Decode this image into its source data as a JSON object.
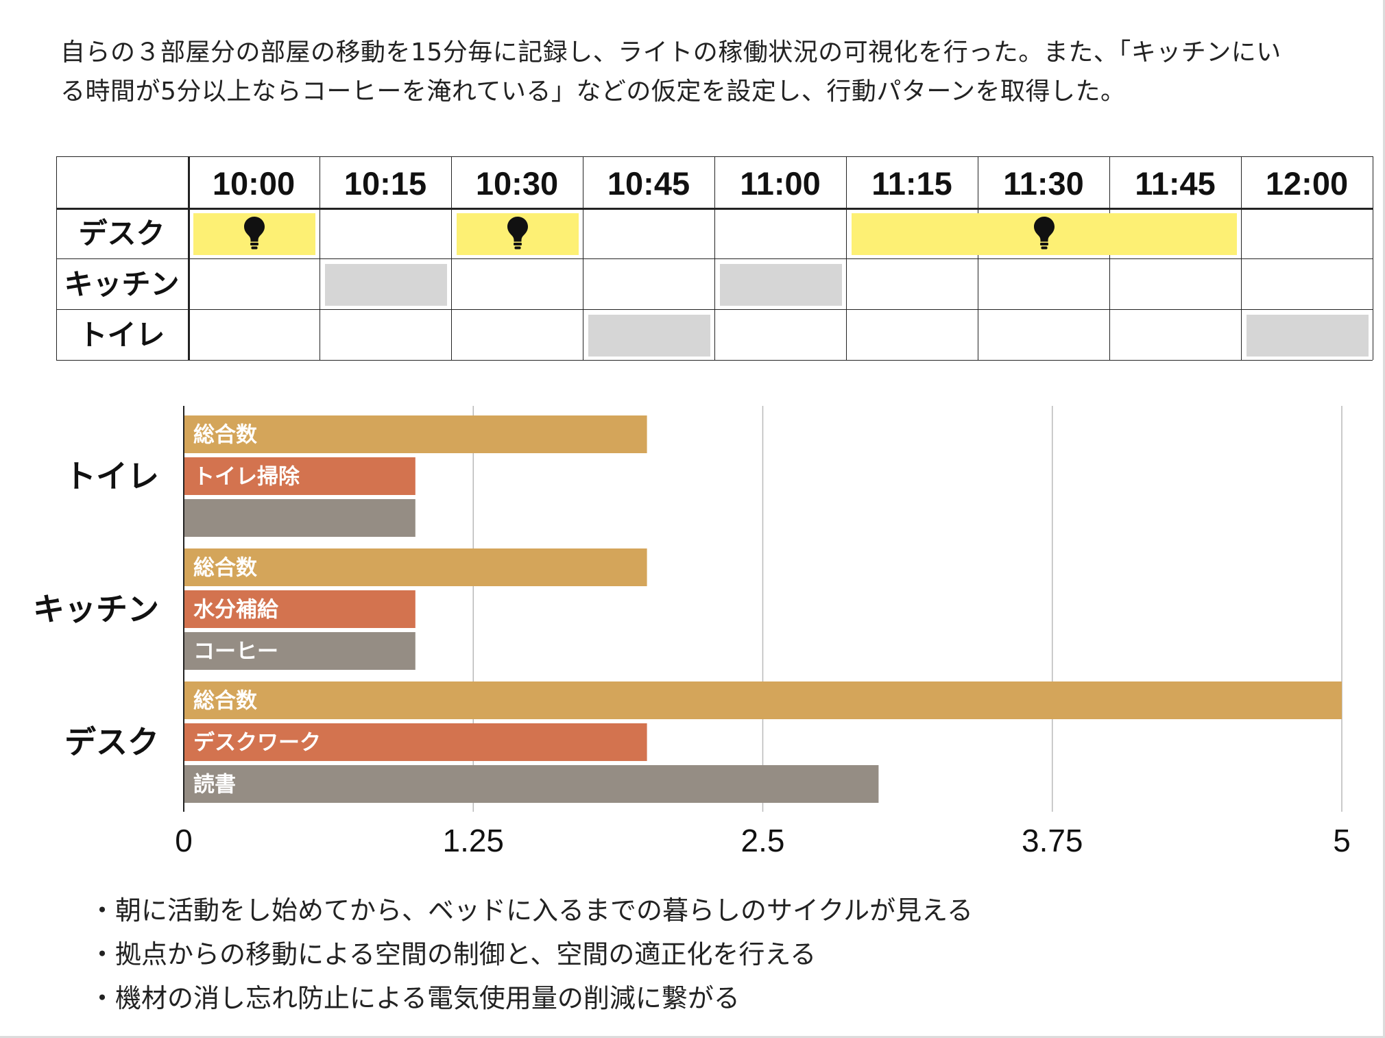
{
  "intro": {
    "line1": "自らの３部屋分の部屋の移動を15分毎に記録し、ライトの稼働状況の可視化を行った。また、「キッチンにい",
    "line2": "る時間が5分以上ならコーヒーを淹れている」などの仮定を設定し、行動パターンを取得した。"
  },
  "schedule": {
    "times": [
      "10:00",
      "10:15",
      "10:30",
      "10:45",
      "11:00",
      "11:15",
      "11:30",
      "11:45",
      "12:00"
    ],
    "rooms": [
      {
        "name": "デスク",
        "spans": [
          {
            "start": 0,
            "end": 0,
            "type": "light"
          },
          {
            "start": 2,
            "end": 2,
            "type": "light"
          },
          {
            "start": 5,
            "end": 7,
            "type": "light"
          }
        ]
      },
      {
        "name": "キッチン",
        "spans": [
          {
            "start": 1,
            "end": 1,
            "type": "occupied"
          },
          {
            "start": 4,
            "end": 4,
            "type": "occupied"
          }
        ]
      },
      {
        "name": "トイレ",
        "spans": [
          {
            "start": 3,
            "end": 3,
            "type": "occupied"
          },
          {
            "start": 8,
            "end": 8,
            "type": "occupied"
          }
        ]
      }
    ],
    "colors": {
      "light": "#fdf074",
      "occupied": "#d6d6d6"
    },
    "light_icon": "lightbulb-icon"
  },
  "chart_data": {
    "type": "bar",
    "orientation": "horizontal",
    "xlim": [
      0,
      5
    ],
    "xticks": [
      "0",
      "1.25",
      "2.5",
      "3.75",
      "5"
    ],
    "grid": true,
    "groups": [
      {
        "name": "トイレ",
        "bars": [
          {
            "label": "総合数",
            "value": 2,
            "color": "#d4a55a"
          },
          {
            "label": "トイレ掃除",
            "value": 1,
            "color": "#d3734f"
          },
          {
            "label": "",
            "value": 1,
            "color": "#958d84"
          }
        ]
      },
      {
        "name": "キッチン",
        "bars": [
          {
            "label": "総合数",
            "value": 2,
            "color": "#d4a55a"
          },
          {
            "label": "水分補給",
            "value": 1,
            "color": "#d3734f"
          },
          {
            "label": "コーヒー",
            "value": 1,
            "color": "#958d84"
          }
        ]
      },
      {
        "name": "デスク",
        "bars": [
          {
            "label": "総合数",
            "value": 5,
            "color": "#d4a55a"
          },
          {
            "label": "デスクワーク",
            "value": 2,
            "color": "#d3734f"
          },
          {
            "label": "読書",
            "value": 3,
            "color": "#958d84"
          }
        ]
      }
    ]
  },
  "bullets": [
    "・朝に活動をし始めてから、ベッドに入るまでの暮らしのサイクルが見える",
    "・拠点からの移動による空間の制御と、空間の適正化を行える",
    "・機材の消し忘れ防止による電気使用量の削減に繋がる"
  ]
}
